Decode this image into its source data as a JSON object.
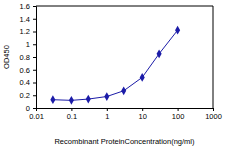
{
  "chart_data": {
    "type": "line",
    "x_label": "Recombinant ProteinConcentration(ng/ml)",
    "y_label": "OD450",
    "x": [
      0.03,
      0.1,
      0.3,
      1,
      3,
      10,
      30,
      100
    ],
    "values": [
      0.13,
      0.12,
      0.14,
      0.18,
      0.27,
      0.48,
      0.85,
      1.22
    ],
    "color": "#1c1ca8",
    "marker": "diamond",
    "line_style": "solid",
    "log": "x",
    "grid": false,
    "xlim": [
      0.01,
      1000
    ],
    "xticks": [
      0.01,
      0.1,
      1,
      10,
      100,
      1000
    ],
    "ylim": [
      0,
      1.6
    ],
    "yticks": [
      0,
      0.2,
      0.4,
      0.6,
      0.8,
      1,
      1.2,
      1.4,
      1.6
    ]
  }
}
